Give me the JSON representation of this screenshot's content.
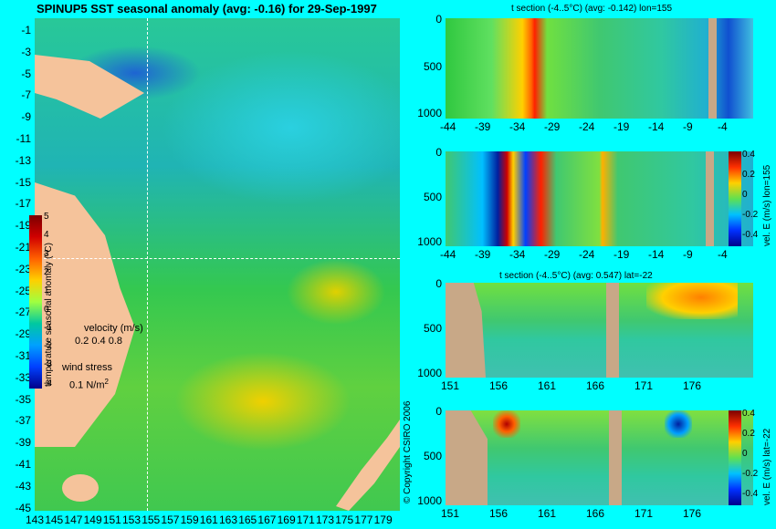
{
  "title": "SPINUP5 SST seasonal anomaly (avg: -0.16) for 29-Sep-1997",
  "map": {
    "lat_ticks": [
      "-1",
      "-3",
      "-5",
      "-7",
      "-9",
      "-11",
      "-13",
      "-15",
      "-17",
      "-19",
      "-21",
      "-23",
      "-25",
      "-27",
      "-29",
      "-31",
      "-33",
      "-35",
      "-37",
      "-39",
      "-41",
      "-43",
      "-45"
    ],
    "lon_ticks": [
      "143",
      "145",
      "147",
      "149",
      "151",
      "153",
      "155",
      "157",
      "159",
      "161",
      "163",
      "165",
      "167",
      "169",
      "171",
      "173",
      "175",
      "177",
      "179"
    ],
    "colorbar_label": "temperature seasonal anomaly (°C)",
    "colorbar_ticks": [
      "5",
      "4",
      "3",
      "2",
      "1",
      "0",
      "-1",
      "-2",
      "-3",
      "-4"
    ],
    "velocity_label": "velocity (m/s)",
    "velocity_scale": "0.2 0.4 0.8",
    "wind_label": "wind stress",
    "wind_scale": "0.1 N/m",
    "wind_scale_sup": "2",
    "copyright": "© Copyright CSIRO 2006"
  },
  "panels": [
    {
      "title": "t section (-4..5°C) (avg: -0.142) lon=155",
      "y_ticks": [
        "0",
        "500",
        "1000"
      ],
      "x_ticks": [
        "-44",
        "-39",
        "-34",
        "-29",
        "-24",
        "-19",
        "-14",
        "-9",
        "-4"
      ]
    },
    {
      "title": "",
      "y_ticks": [
        "0",
        "500",
        "1000"
      ],
      "x_ticks": [
        "-44",
        "-39",
        "-34",
        "-29",
        "-24",
        "-19",
        "-14",
        "-9",
        "-4"
      ],
      "cb_label": "vel. E (m/s) lon=155",
      "cb_ticks": [
        "0.4",
        "0.2",
        "0",
        "-0.2",
        "-0.4"
      ]
    },
    {
      "title": "t section (-4..5°C) (avg: 0.547) lat=-22",
      "y_ticks": [
        "0",
        "500",
        "1000"
      ],
      "x_ticks": [
        "151",
        "156",
        "161",
        "166",
        "171",
        "176"
      ]
    },
    {
      "title": "",
      "y_ticks": [
        "0",
        "500",
        "1000"
      ],
      "x_ticks": [
        "151",
        "156",
        "161",
        "166",
        "171",
        "176"
      ],
      "cb_label": "vel. E (m/s) lat=-22",
      "cb_ticks": [
        "0.4",
        "0.2",
        "0",
        "-0.2",
        "-0.4"
      ]
    }
  ],
  "chart_data": [
    {
      "type": "heatmap",
      "title": "SPINUP5 SST seasonal anomaly (avg: -0.16) for 29-Sep-1997",
      "xlabel": "",
      "ylabel": "",
      "xlim": [
        143,
        180
      ],
      "ylim": [
        -45,
        0
      ],
      "colorbar_range": [
        -4,
        5
      ]
    },
    {
      "type": "heatmap",
      "title": "t section (-4..5°C) (avg: -0.142) lon=155",
      "xlim": [
        -45,
        -1
      ],
      "ylim": [
        1050,
        0
      ]
    },
    {
      "type": "heatmap",
      "title": "",
      "xlim": [
        -45,
        -1
      ],
      "ylim": [
        1050,
        0
      ],
      "colorbar_range": [
        -0.4,
        0.4
      ]
    },
    {
      "type": "heatmap",
      "title": "t section (-4..5°C) (avg: 0.547) lat=-22",
      "xlim": [
        150,
        180
      ],
      "ylim": [
        1050,
        0
      ]
    },
    {
      "type": "heatmap",
      "title": "",
      "xlim": [
        150,
        180
      ],
      "ylim": [
        1050,
        0
      ],
      "colorbar_range": [
        -0.4,
        0.4
      ]
    }
  ]
}
